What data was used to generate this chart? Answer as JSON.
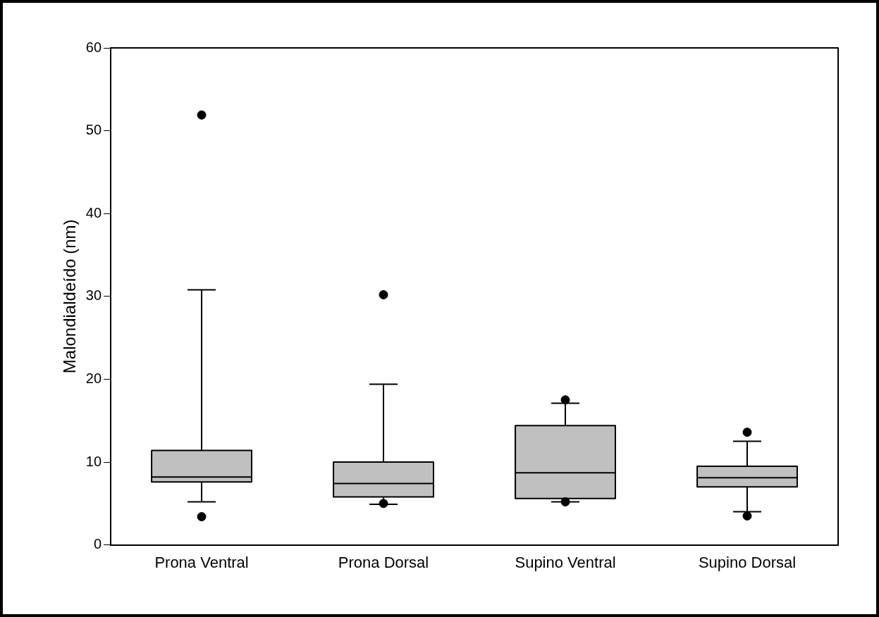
{
  "chart_data": {
    "type": "box",
    "ylabel": "Malondialdeído (nm)",
    "categories": [
      "Prona Ventral",
      "Prona Dorsal",
      "Supino Ventral",
      "Supino Dorsal"
    ],
    "color": "#c0c0c0",
    "ylim": [
      0,
      60
    ],
    "yticks": [
      0,
      10,
      20,
      30,
      40,
      50,
      60
    ],
    "grid": false,
    "legend": false,
    "marker": "circle",
    "boxes": [
      {
        "low": 5.2,
        "q1": 7.6,
        "median": 8.2,
        "q3": 11.4,
        "high": 30.8,
        "outliers": [
          3.4,
          51.9
        ]
      },
      {
        "low": 4.9,
        "q1": 5.8,
        "median": 7.4,
        "q3": 10.0,
        "high": 19.4,
        "outliers": [
          30.2,
          5.0
        ]
      },
      {
        "low": 5.2,
        "q1": 5.6,
        "median": 8.7,
        "q3": 14.4,
        "high": 17.1,
        "outliers": [
          17.5,
          5.2
        ]
      },
      {
        "low": 4.0,
        "q1": 7.0,
        "median": 8.1,
        "q3": 9.5,
        "high": 12.5,
        "outliers": [
          13.6,
          3.5
        ]
      }
    ]
  }
}
